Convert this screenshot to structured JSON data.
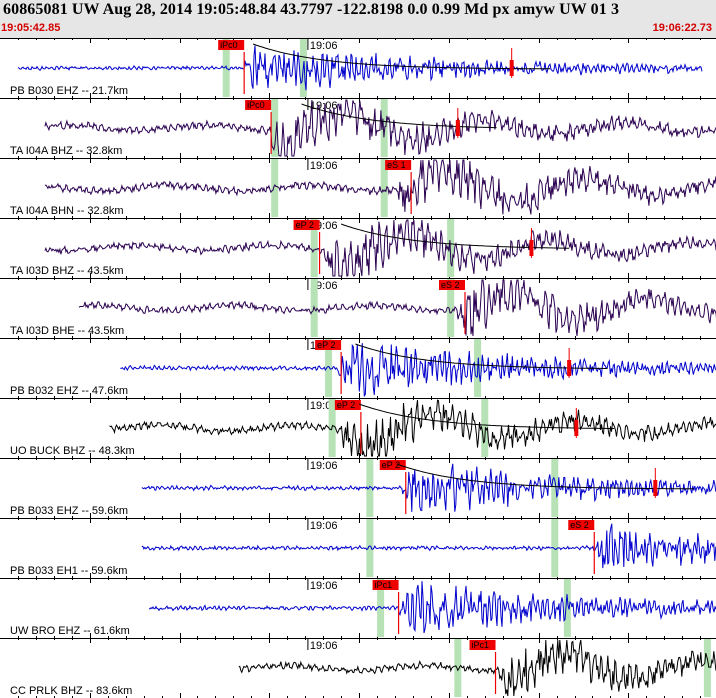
{
  "header": {
    "title": "60865081 UW Aug 28, 2014 19:05:48.84   43.7797 -122.8198  0.0 0.99 Md px amyw UW 01   3",
    "start_time": "19:05:42.85",
    "end_time": "19:06:22.73"
  },
  "colors": {
    "header_bg": "#e6e6e6",
    "time_label": "#d40000",
    "blue_trace": "#0000cc",
    "purple_trace": "#2a0050",
    "black_trace": "#000000",
    "pick": "#ee0000",
    "window": "#b6e2b6"
  },
  "chart_data": {
    "type": "line",
    "title": "60865081 UW Aug 28, 2014 19:05:48.84   43.7797 -122.8198  0.0 0.99 Md px amyw UW 01   3",
    "x_range": [
      "19:05:42.85",
      "19:06:22.73"
    ],
    "minute_label": "19:06",
    "series": [
      {
        "name": "PB B030 EHZ -- 21.7km",
        "pick": "iPc0",
        "color": "blue",
        "trace_start": 1.0,
        "trace_end": 39.1,
        "onset": 13.6,
        "amplitude": 0.5,
        "pick_time": 13.6,
        "window1": 12.6,
        "window2": 16.9,
        "second_mark": 28.5
      },
      {
        "name": "TA I04A BHZ -- 32.8km",
        "pick": "iPc0",
        "color": "purple",
        "trace_start": 2.5,
        "trace_end": 41.2,
        "onset": 15.1,
        "amplitude": 0.65,
        "pick_time": 15.1,
        "window1": 15.3,
        "window2": 21.4,
        "second_mark": 25.5
      },
      {
        "name": "TA I04A BHN -- 32.8km",
        "pick": "eS 1",
        "color": "purple",
        "trace_start": 2.5,
        "trace_end": 41.2,
        "onset": 22.2,
        "amplitude": 0.65,
        "pick_time": 22.9,
        "window1": 15.3,
        "window2": 21.4,
        "second_mark": null
      },
      {
        "name": "TA I03D BHZ -- 43.5km",
        "pick": "eP 2",
        "color": "purple",
        "trace_start": 2.5,
        "trace_end": 43.3,
        "onset": 18.0,
        "amplitude": 0.65,
        "pick_time": 17.8,
        "window1": 17.5,
        "window2": 25.1,
        "second_mark": 29.6
      },
      {
        "name": "TA I03D BHE -- 43.5km",
        "pick": "eS 2",
        "color": "purple",
        "trace_start": 4.4,
        "trace_end": 43.3,
        "onset": 25.5,
        "amplitude": 0.6,
        "pick_time": 25.9,
        "window1": 17.5,
        "window2": 25.1,
        "second_mark": null
      },
      {
        "name": "PB B032 EHZ -- 47.6km",
        "pick": "eP 2",
        "color": "blue",
        "trace_start": 6.7,
        "trace_end": 44.1,
        "onset": 18.8,
        "amplitude": 0.6,
        "pick_time": 19.0,
        "window1": 18.3,
        "window2": 26.6,
        "second_mark": 31.7
      },
      {
        "name": "UO BUCK BHZ -- 48.3km",
        "pick": "eP 2",
        "color": "black",
        "trace_start": 6.1,
        "trace_end": 44.2,
        "onset": 19.0,
        "amplitude": 0.65,
        "pick_time": 20.1,
        "window1": 18.5,
        "window2": 27.0,
        "second_mark": 32.1
      },
      {
        "name": "PB B033 EHZ -- 59.6km",
        "pick": "eP 2",
        "color": "blue",
        "trace_start": 7.9,
        "trace_end": 46.7,
        "onset": 22.4,
        "amplitude": 0.55,
        "pick_time": 22.6,
        "window1": 20.6,
        "window2": 30.9,
        "second_mark": 36.5
      },
      {
        "name": "PB B033 EH1 -- 59.6km",
        "pick": "eS 2",
        "color": "blue",
        "trace_start": 7.9,
        "trace_end": 46.7,
        "onset": 33.0,
        "amplitude": 0.55,
        "pick_time": 33.1,
        "window1": 20.6,
        "window2": 30.9,
        "second_mark": null
      },
      {
        "name": "UW BRO EHZ -- 61.6km",
        "pick": "iPc1",
        "color": "blue",
        "trace_start": 8.3,
        "trace_end": 47.0,
        "onset": 22.2,
        "amplitude": 0.6,
        "pick_time": 22.2,
        "window1": 21.2,
        "window2": 31.6,
        "second_mark": null
      },
      {
        "name": "CC PRLK BHZ -- 83.6km",
        "pick": "iPc1",
        "color": "black",
        "trace_start": 13.3,
        "trace_end": 49.8,
        "onset": 27.8,
        "amplitude": 0.6,
        "pick_time": 27.6,
        "window1": 25.5,
        "window2": 39.4,
        "second_mark": null
      }
    ]
  }
}
